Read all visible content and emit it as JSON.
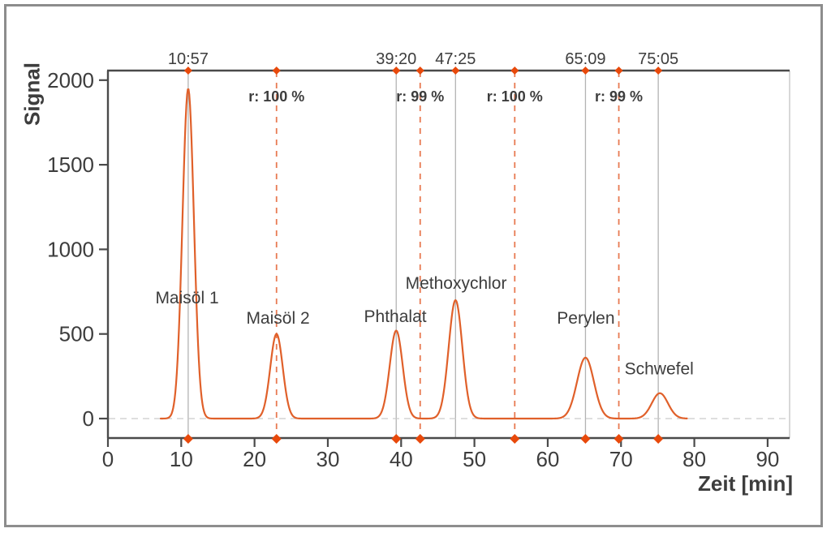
{
  "chart_data": {
    "type": "line",
    "title": "",
    "xlabel": "Zeit [min]",
    "ylabel": "Signal",
    "xlim": [
      0,
      93
    ],
    "ylim": [
      0,
      2050
    ],
    "x_ticks": [
      0,
      10,
      20,
      30,
      40,
      50,
      60,
      70,
      80,
      90
    ],
    "y_ticks": [
      0,
      500,
      1000,
      1500,
      2000
    ],
    "grid": "off",
    "legend": "none",
    "zero_baseline_dashed": true,
    "curve_start_min": 7.2,
    "curve_end_min": 79.0,
    "peaks": [
      {
        "name": "Maisöl 1",
        "center_min": 10.95,
        "height_signal": 1950,
        "sigma_min": 0.78,
        "label_min": 10.8,
        "label_signal": 720
      },
      {
        "name": "Maisöl 2",
        "center_min": 23.0,
        "height_signal": 500,
        "sigma_min": 0.85,
        "label_min": 23.2,
        "label_signal": 600
      },
      {
        "name": "Phthalat",
        "center_min": 39.33,
        "height_signal": 520,
        "sigma_min": 0.88,
        "label_min": 39.2,
        "label_signal": 610
      },
      {
        "name": "Methoxychlor",
        "center_min": 47.42,
        "height_signal": 700,
        "sigma_min": 0.93,
        "label_min": 47.5,
        "label_signal": 805
      },
      {
        "name": "Perylen",
        "center_min": 65.15,
        "height_signal": 360,
        "sigma_min": 1.15,
        "label_min": 65.2,
        "label_signal": 600
      },
      {
        "name": "Schwefel",
        "center_min": 75.3,
        "height_signal": 150,
        "sigma_min": 1.1,
        "label_min": 75.2,
        "label_signal": 300
      }
    ],
    "retention_markers": [
      {
        "time_min": 10.95,
        "label": "10:57",
        "style": "solid",
        "top_diamond": true,
        "bottom_diamond": true
      },
      {
        "time_min": 39.33,
        "label": "39:20",
        "style": "solid",
        "top_diamond": true,
        "bottom_diamond": true
      },
      {
        "time_min": 47.42,
        "label": "47:25",
        "style": "solid",
        "top_diamond": true,
        "bottom_diamond": false
      },
      {
        "time_min": 65.15,
        "label": "65:09",
        "style": "solid",
        "top_diamond": true,
        "bottom_diamond": true
      },
      {
        "time_min": 75.08,
        "label": "75:05",
        "style": "solid",
        "top_diamond": true,
        "bottom_diamond": true
      }
    ],
    "recovery_markers": [
      {
        "time_min": 23.0,
        "label": "r: 100 %",
        "style": "dashed",
        "top_diamond": true,
        "bottom_diamond": true
      },
      {
        "time_min": 42.6,
        "label": "r: 99 %",
        "style": "dashed",
        "top_diamond": true,
        "bottom_diamond": true
      },
      {
        "time_min": 55.5,
        "label": "r: 100 %",
        "style": "dashed",
        "top_diamond": true,
        "bottom_diamond": true
      },
      {
        "time_min": 69.7,
        "label": "r: 99 %",
        "style": "dashed",
        "top_diamond": true,
        "bottom_diamond": true
      }
    ],
    "colors": {
      "curve": "#e0602a",
      "dashed_marker_line": "#e87a52",
      "diamond": "#e8490b",
      "solid_marker_line": "#b3b3b3",
      "axis": "#4a4a4a",
      "right_frame": "#c4c4c4",
      "zero_line": "#c9c9c9",
      "text": "#3d3d3d",
      "background": "#ffffff",
      "border": "#8d8d8d"
    }
  }
}
